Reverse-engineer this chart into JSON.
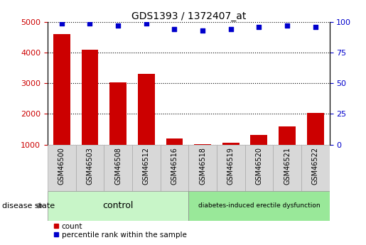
{
  "title": "GDS1393 / 1372407_at",
  "samples": [
    "GSM46500",
    "GSM46503",
    "GSM46508",
    "GSM46512",
    "GSM46516",
    "GSM46518",
    "GSM46519",
    "GSM46520",
    "GSM46521",
    "GSM46522"
  ],
  "counts": [
    4600,
    4100,
    3020,
    3310,
    1190,
    1010,
    1060,
    1310,
    1590,
    2030
  ],
  "percentile_ranks": [
    99,
    99,
    97,
    99,
    94,
    93,
    94,
    96,
    97,
    96
  ],
  "ylim_left": [
    1000,
    5000
  ],
  "ylim_right": [
    0,
    100
  ],
  "yticks_left": [
    1000,
    2000,
    3000,
    4000,
    5000
  ],
  "yticks_right": [
    0,
    25,
    50,
    75,
    100
  ],
  "bar_color": "#cc0000",
  "dot_color": "#0000cc",
  "grid_color": "#000000",
  "n_control": 5,
  "n_disease": 5,
  "control_label": "control",
  "disease_label": "diabetes-induced erectile dysfunction",
  "disease_state_label": "disease state",
  "legend_count_label": "count",
  "legend_pct_label": "percentile rank within the sample",
  "control_color": "#c8f5c8",
  "disease_color": "#99e899",
  "tick_bg_color": "#d8d8d8",
  "bar_width": 0.6
}
